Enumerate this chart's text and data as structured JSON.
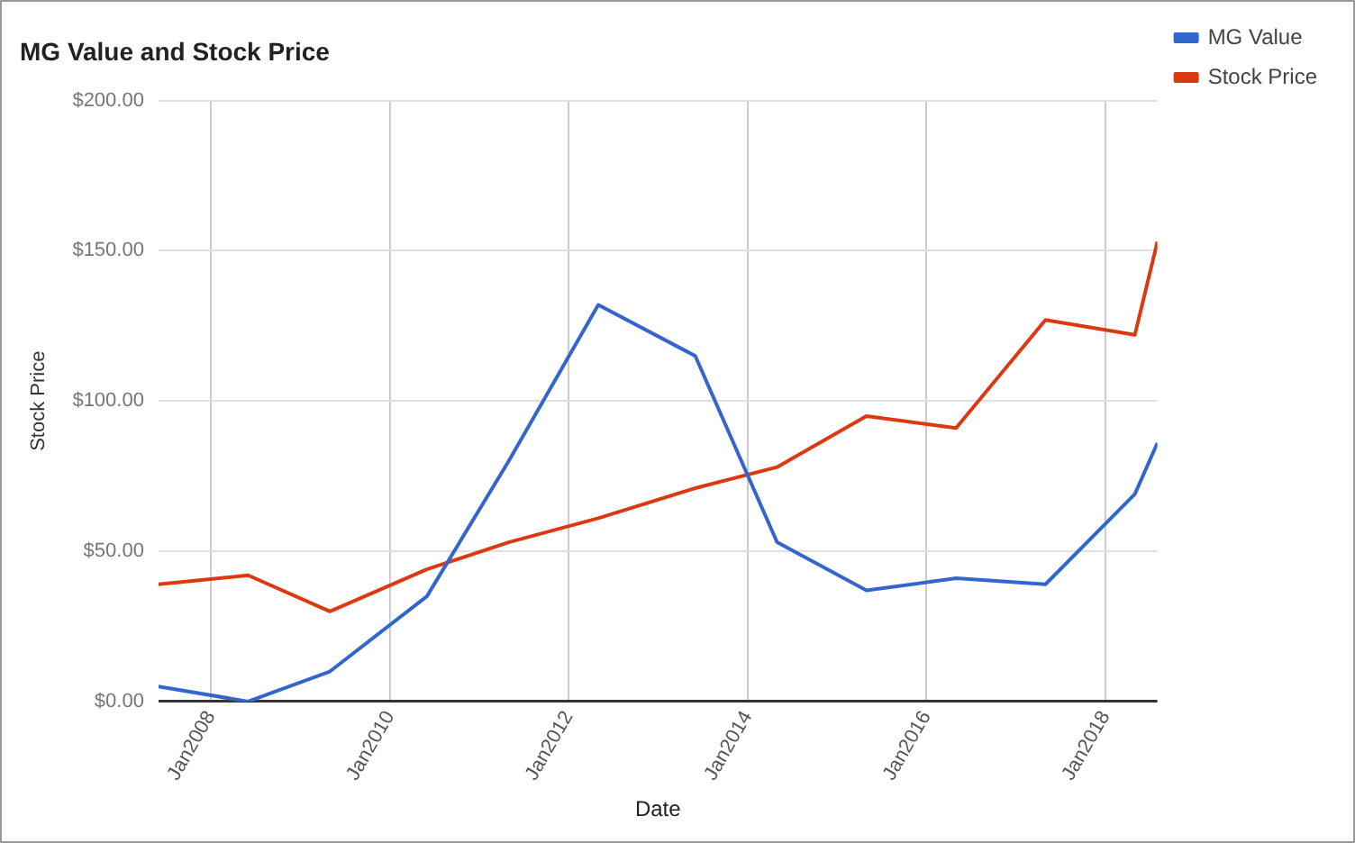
{
  "chart_data": {
    "type": "line",
    "title": "MG Value and Stock Price",
    "xlabel": "Date",
    "ylabel": "Stock Price",
    "x": [
      "2007-06-01",
      "2008-06-01",
      "2009-05-01",
      "2010-06-01",
      "2011-05-01",
      "2012-05-01",
      "2013-06-01",
      "2014-05-01",
      "2015-05-01",
      "2016-05-01",
      "2017-05-01",
      "2018-05-01",
      "2018-08-01"
    ],
    "series": [
      {
        "name": "MG Value",
        "color": "#3366cc",
        "values": [
          5,
          0,
          10,
          35,
          80,
          132,
          115,
          53,
          37,
          41,
          39,
          69,
          86
        ]
      },
      {
        "name": "Stock Price",
        "color": "#dc3912",
        "values": [
          39,
          42,
          30,
          44,
          53,
          61,
          71,
          78,
          95,
          91,
          127,
          122,
          153
        ]
      }
    ],
    "xlim": [
      "2007-06-01",
      "2018-08-01"
    ],
    "xticks": [
      {
        "value": "2008-01-01",
        "label": "Jan2008"
      },
      {
        "value": "2010-01-01",
        "label": "Jan2010"
      },
      {
        "value": "2012-01-01",
        "label": "Jan2012"
      },
      {
        "value": "2014-01-01",
        "label": "Jan2014"
      },
      {
        "value": "2016-01-01",
        "label": "Jan2016"
      },
      {
        "value": "2018-01-01",
        "label": "Jan2018"
      }
    ],
    "ylim": [
      0,
      200
    ],
    "yticks": [
      {
        "value": 0,
        "label": "$0.00"
      },
      {
        "value": 50,
        "label": "$50.00"
      },
      {
        "value": 100,
        "label": "$100.00"
      },
      {
        "value": 150,
        "label": "$150.00"
      },
      {
        "value": 200,
        "label": "$200.00"
      }
    ],
    "grid": true,
    "legend": "top right",
    "marker": "none",
    "line_style": "solid"
  }
}
